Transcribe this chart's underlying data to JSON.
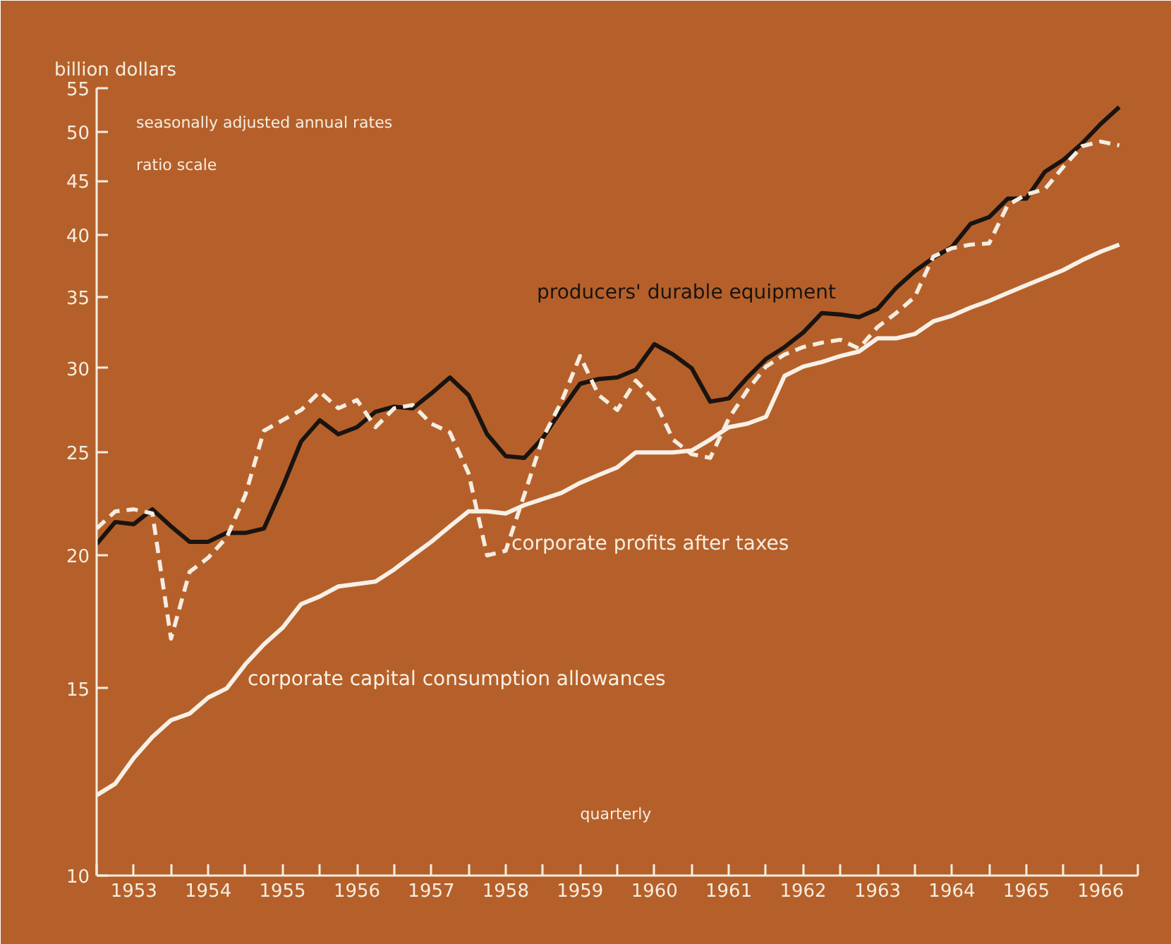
{
  "chart_data": {
    "type": "line",
    "ylabel": "billion dollars",
    "annotations": [
      "seasonally adjusted annual rates",
      "ratio scale",
      "quarterly"
    ],
    "x": [
      1953.0,
      1953.25,
      1953.5,
      1953.75,
      1954.0,
      1954.25,
      1954.5,
      1954.75,
      1955.0,
      1955.25,
      1955.5,
      1955.75,
      1956.0,
      1956.25,
      1956.5,
      1956.75,
      1957.0,
      1957.25,
      1957.5,
      1957.75,
      1958.0,
      1958.25,
      1958.5,
      1958.75,
      1959.0,
      1959.25,
      1959.5,
      1959.75,
      1960.0,
      1960.25,
      1960.5,
      1960.75,
      1961.0,
      1961.25,
      1961.5,
      1961.75,
      1962.0,
      1962.25,
      1962.5,
      1962.75,
      1963.0,
      1963.25,
      1963.5,
      1963.75,
      1964.0,
      1964.25,
      1964.5,
      1964.75,
      1965.0,
      1965.25,
      1965.5,
      1965.75,
      1966.0,
      1966.25,
      1966.5,
      1966.75
    ],
    "series": [
      {
        "name": "producers' durable equipment",
        "color": "#1a1410",
        "line_style": "solid",
        "values": [
          20.5,
          21.5,
          21.4,
          22.1,
          21.3,
          20.6,
          20.6,
          21.0,
          21.0,
          21.2,
          23.2,
          25.6,
          26.8,
          26.0,
          26.4,
          27.3,
          27.6,
          27.5,
          28.4,
          29.4,
          28.3,
          26.0,
          24.8,
          24.7,
          25.8,
          27.4,
          29.0,
          29.3,
          29.4,
          29.9,
          31.6,
          30.9,
          30.0,
          27.9,
          28.1,
          29.4,
          30.6,
          31.4,
          32.4,
          33.8,
          33.7,
          33.5,
          34.1,
          35.7,
          37.0,
          38.1,
          39.0,
          41.0,
          41.6,
          43.3,
          43.3,
          45.9,
          47.1,
          48.8,
          50.9,
          52.8
        ]
      },
      {
        "name": "corporate profits after taxes",
        "color": "#f5ede0",
        "line_style": "dashed",
        "values": [
          21.2,
          22.0,
          22.1,
          21.9,
          16.7,
          19.3,
          19.9,
          20.8,
          22.8,
          26.2,
          26.8,
          27.4,
          28.5,
          27.5,
          28.0,
          26.4,
          27.5,
          27.7,
          26.6,
          26.1,
          23.9,
          20.0,
          20.2,
          22.8,
          25.8,
          27.9,
          30.8,
          28.3,
          27.4,
          29.2,
          28.0,
          25.7,
          24.9,
          24.7,
          26.9,
          28.6,
          30.1,
          30.9,
          31.4,
          31.7,
          31.9,
          31.3,
          32.8,
          33.8,
          35.0,
          38.2,
          38.9,
          39.2,
          39.3,
          42.7,
          43.7,
          44.2,
          46.4,
          48.5,
          49.0,
          48.6
        ]
      },
      {
        "name": "corporate capital consumption allowances",
        "color": "#f8f0e6",
        "line_style": "solid",
        "values": [
          11.9,
          12.2,
          12.9,
          13.5,
          14.0,
          14.2,
          14.7,
          15.0,
          15.8,
          16.5,
          17.1,
          18.0,
          18.3,
          18.7,
          18.8,
          18.9,
          19.4,
          20.0,
          20.6,
          21.3,
          22.0,
          22.0,
          21.9,
          22.3,
          22.6,
          22.9,
          23.4,
          23.8,
          24.2,
          25.0,
          25.0,
          25.0,
          25.1,
          25.7,
          26.4,
          26.6,
          27.0,
          29.5,
          30.1,
          30.4,
          30.8,
          31.1,
          32.0,
          32.0,
          32.3,
          33.2,
          33.6,
          34.2,
          34.7,
          35.3,
          35.9,
          36.5,
          37.1,
          37.9,
          38.6,
          39.2
        ]
      }
    ],
    "log": "y",
    "ylim": [
      10,
      55
    ],
    "yticks": [
      10,
      15,
      20,
      25,
      30,
      35,
      40,
      45,
      50,
      55
    ],
    "xlim": [
      1953,
      1967
    ],
    "xticks": [
      {
        "value": 1953,
        "label": null
      },
      {
        "value": 1953.5,
        "label": "1953"
      },
      {
        "value": 1954,
        "label": null
      },
      {
        "value": 1954.5,
        "label": "1954"
      },
      {
        "value": 1955,
        "label": null
      },
      {
        "value": 1955.5,
        "label": "1955"
      },
      {
        "value": 1956,
        "label": null
      },
      {
        "value": 1956.5,
        "label": "1956"
      },
      {
        "value": 1957,
        "label": null
      },
      {
        "value": 1957.5,
        "label": "1957"
      },
      {
        "value": 1958,
        "label": null
      },
      {
        "value": 1958.5,
        "label": "1958"
      },
      {
        "value": 1959,
        "label": null
      },
      {
        "value": 1959.5,
        "label": "1959"
      },
      {
        "value": 1960,
        "label": null
      },
      {
        "value": 1960.5,
        "label": "1960"
      },
      {
        "value": 1961,
        "label": null
      },
      {
        "value": 1961.5,
        "label": "1961"
      },
      {
        "value": 1962,
        "label": null
      },
      {
        "value": 1962.5,
        "label": "1962"
      },
      {
        "value": 1963,
        "label": null
      },
      {
        "value": 1963.5,
        "label": "1963"
      },
      {
        "value": 1964,
        "label": null
      },
      {
        "value": 1964.5,
        "label": "1964"
      },
      {
        "value": 1965,
        "label": null
      },
      {
        "value": 1965.5,
        "label": "1965"
      },
      {
        "value": 1966,
        "label": null
      },
      {
        "value": 1966.5,
        "label": "1966"
      },
      {
        "value": 1967,
        "label": null
      }
    ],
    "grid": false,
    "legend": false,
    "marker": "none"
  }
}
